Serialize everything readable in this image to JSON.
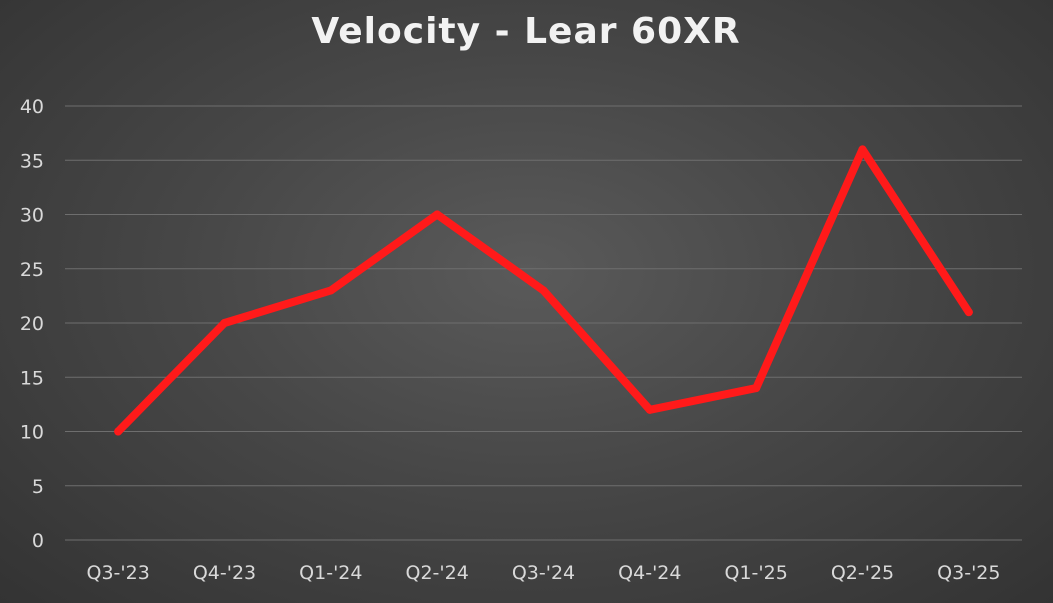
{
  "chart_data": {
    "type": "line",
    "title": "Velocity - Lear 60XR",
    "xlabel": "",
    "ylabel": "",
    "categories": [
      "Q3-'23",
      "Q4-'23",
      "Q1-'24",
      "Q2-'24",
      "Q3-'24",
      "Q4-'24",
      "Q1-'25",
      "Q2-'25",
      "Q3-'25"
    ],
    "series": [
      {
        "values": [
          10,
          20,
          23,
          30,
          23,
          12,
          14,
          36,
          21
        ],
        "color": "#ff1a1a"
      }
    ],
    "ylim": [
      0,
      40
    ],
    "yticks": [
      0,
      5,
      10,
      15,
      20,
      25,
      30,
      35,
      40
    ],
    "grid": true,
    "legend": "none",
    "colors": {
      "background": "#474747",
      "gridline": "#6e6e6e",
      "text": "#d9d9d9",
      "title": "#f2f2f2"
    }
  }
}
